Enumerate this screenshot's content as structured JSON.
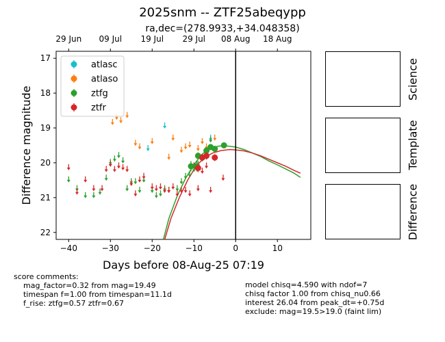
{
  "title": "2025snm -- ZTF25abeqypp",
  "subtitle": "ra,dec=(278.9933,+34.048358)",
  "chart_data": {
    "type": "scatter",
    "xlabel": "Days before 08-Aug-25 07:19",
    "ylabel": "Difference magnitude",
    "xlim": [
      -43,
      18
    ],
    "ylim": [
      22.2,
      16.8
    ],
    "x_ticks": [
      -40,
      -30,
      -20,
      -10,
      0,
      10
    ],
    "y_ticks": [
      17,
      18,
      19,
      20,
      21,
      22
    ],
    "top_axis_ticks": [
      {
        "x": -40,
        "label": "29 Jun"
      },
      {
        "x": -30,
        "label": "09 Jul"
      },
      {
        "x": -20,
        "label": "19 Jul"
      },
      {
        "x": -10,
        "label": "29 Jul"
      },
      {
        "x": 0,
        "label": "08 Aug"
      },
      {
        "x": 10,
        "label": "18 Aug"
      }
    ],
    "reference_line_x": 0,
    "legend_position": "top-left",
    "series": [
      {
        "name": "atlasc",
        "color": "#17becf",
        "upper_limits": [
          [
            -21,
            19.55
          ],
          [
            -17,
            18.9
          ],
          [
            -6,
            19.25
          ]
        ],
        "detections": []
      },
      {
        "name": "atlaso",
        "color": "#ff7f0e",
        "upper_limits": [
          [
            -29.5,
            18.8
          ],
          [
            -28.5,
            18.65
          ],
          [
            -27.5,
            18.75
          ],
          [
            -26,
            18.6
          ],
          [
            -24,
            19.4
          ],
          [
            -23,
            19.5
          ],
          [
            -20,
            19.35
          ],
          [
            -16,
            19.8
          ],
          [
            -15,
            19.25
          ],
          [
            -13,
            19.6
          ],
          [
            -12,
            19.5
          ],
          [
            -11,
            19.45
          ],
          [
            -9,
            19.55
          ],
          [
            -8,
            19.35
          ],
          [
            -7,
            19.5
          ],
          [
            -5,
            19.25
          ]
        ],
        "detections": []
      },
      {
        "name": "ztfg",
        "color": "#2ca02c",
        "upper_limits": [
          [
            -40,
            20.45
          ],
          [
            -38,
            20.7
          ],
          [
            -36,
            20.9
          ],
          [
            -34,
            20.9
          ],
          [
            -32.5,
            20.8
          ],
          [
            -31,
            20.4
          ],
          [
            -30,
            19.95
          ],
          [
            -29,
            19.85
          ],
          [
            -28,
            19.75
          ],
          [
            -27,
            19.9
          ],
          [
            -26,
            20.7
          ],
          [
            -25,
            20.5
          ],
          [
            -24,
            20.5
          ],
          [
            -23,
            20.75
          ],
          [
            -22,
            20.45
          ],
          [
            -20,
            20.75
          ],
          [
            -19,
            20.9
          ],
          [
            -18,
            20.85
          ],
          [
            -17,
            20.7
          ],
          [
            -16,
            20.75
          ],
          [
            -14,
            20.7
          ],
          [
            -13,
            20.5
          ],
          [
            -12,
            20.35
          ],
          [
            -11,
            20.3
          ],
          [
            -10,
            20.15
          ],
          [
            -9,
            20.0
          ],
          [
            -8,
            19.85
          ],
          [
            -7,
            19.8
          ],
          [
            -6,
            19.3
          ]
        ],
        "detections": [
          [
            -10.7,
            20.1,
            0.15
          ],
          [
            -9.3,
            20.1,
            0.15
          ],
          [
            -9,
            19.8,
            0.1
          ],
          [
            -8,
            19.85,
            0.1
          ],
          [
            -7,
            19.65,
            0.1
          ],
          [
            -6,
            19.55,
            0.08
          ],
          [
            -5,
            19.6,
            0.08
          ],
          [
            -2.8,
            19.5,
            0.08
          ]
        ]
      },
      {
        "name": "ztfr",
        "color": "#d62728",
        "upper_limits": [
          [
            -40,
            20.1
          ],
          [
            -38,
            20.8
          ],
          [
            -36,
            20.45
          ],
          [
            -34,
            20.7
          ],
          [
            -32,
            20.7
          ],
          [
            -31,
            20.15
          ],
          [
            -30,
            20.0
          ],
          [
            -29,
            20.15
          ],
          [
            -28,
            20.05
          ],
          [
            -27,
            20.1
          ],
          [
            -26,
            20.15
          ],
          [
            -25,
            20.55
          ],
          [
            -24,
            20.85
          ],
          [
            -23,
            20.45
          ],
          [
            -22,
            20.35
          ],
          [
            -20,
            20.65
          ],
          [
            -19,
            20.7
          ],
          [
            -18,
            20.65
          ],
          [
            -17,
            20.75
          ],
          [
            -16,
            20.75
          ],
          [
            -15,
            20.65
          ],
          [
            -14,
            20.85
          ],
          [
            -13,
            20.75
          ],
          [
            -12,
            20.75
          ],
          [
            -11,
            20.85
          ],
          [
            -10,
            20.05
          ],
          [
            -9,
            20.7
          ],
          [
            -8,
            20.2
          ],
          [
            -7,
            20.05
          ],
          [
            -6,
            20.75
          ],
          [
            -3,
            20.4
          ]
        ],
        "detections": [
          [
            -9,
            20.15,
            0.12
          ],
          [
            -8,
            19.85,
            0.1
          ],
          [
            -7,
            19.8,
            0.1
          ],
          [
            -5,
            19.85,
            0.1
          ]
        ]
      }
    ],
    "model_curves": [
      {
        "band": "ztfg",
        "color": "#2ca02c",
        "points": [
          [
            -17.3,
            22.2
          ],
          [
            -16,
            21.6
          ],
          [
            -14,
            20.95
          ],
          [
            -12,
            20.45
          ],
          [
            -10,
            20.05
          ],
          [
            -8,
            19.75
          ],
          [
            -6,
            19.58
          ],
          [
            -4,
            19.52
          ],
          [
            -2,
            19.52
          ],
          [
            0,
            19.55
          ],
          [
            2,
            19.62
          ],
          [
            4,
            19.72
          ],
          [
            6,
            19.82
          ],
          [
            8,
            19.95
          ],
          [
            10,
            20.06
          ],
          [
            12,
            20.18
          ],
          [
            14,
            20.3
          ],
          [
            15.5,
            20.42
          ]
        ]
      },
      {
        "band": "ztfr",
        "color": "#d62728",
        "points": [
          [
            -17,
            22.2
          ],
          [
            -15.5,
            21.6
          ],
          [
            -13.5,
            21.0
          ],
          [
            -11.5,
            20.5
          ],
          [
            -9.5,
            20.1
          ],
          [
            -7.5,
            19.85
          ],
          [
            -5.5,
            19.72
          ],
          [
            -3.5,
            19.65
          ],
          [
            -1.5,
            19.62
          ],
          [
            0,
            19.63
          ],
          [
            2,
            19.66
          ],
          [
            4,
            19.72
          ],
          [
            6,
            19.8
          ],
          [
            8,
            19.9
          ],
          [
            10,
            20.0
          ],
          [
            12,
            20.1
          ],
          [
            14,
            20.22
          ],
          [
            15.5,
            20.3
          ]
        ]
      }
    ]
  },
  "panels": [
    {
      "label": "Science"
    },
    {
      "label": "Template"
    },
    {
      "label": "Difference"
    }
  ],
  "comments_left": "score comments:\n    mag_factor=0.32 from mag=19.49\n    timespan f=1.00 from timespan=11.1d\n    f_rise: ztfg=0.57 ztfr=0.67",
  "comments_right": "model chisq=4.590 with ndof=7\nchisq factor 1.00 from chisq_nu0.66\ninterest 26.04 from peak_dt=+0.75d\nexclude: mag=19.5>19.0 (faint lim)"
}
